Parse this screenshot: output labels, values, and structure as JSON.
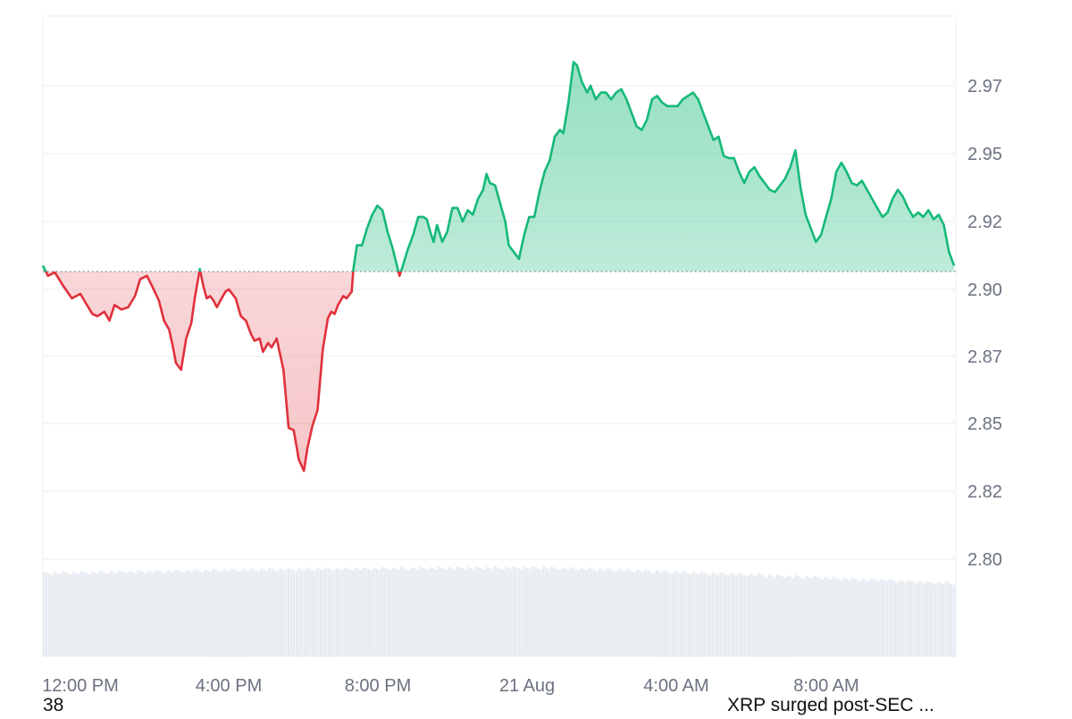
{
  "chart_data": {
    "type": "area",
    "baseline": 2.906,
    "ylim": [
      2.775,
      2.995
    ],
    "y_ticks": [
      "2.97",
      "2.95",
      "2.92",
      "2.90",
      "2.87",
      "2.85",
      "2.82",
      "2.80"
    ],
    "y_tick_values": [
      2.97,
      2.95,
      2.92,
      2.9,
      2.87,
      2.85,
      2.82,
      2.8
    ],
    "x_ticks": [
      {
        "label": "12:00 PM",
        "t": 0.0
      },
      {
        "label": "4:00 PM",
        "t": 4.0
      },
      {
        "label": "8:00 PM",
        "t": 8.0
      },
      {
        "label": "21 Aug",
        "t": 12.0
      },
      {
        "label": "4:00 AM",
        "t": 16.0
      },
      {
        "label": "8:00 AM",
        "t": 20.0
      }
    ],
    "x_range_hours": [
      -0.1,
      24.4
    ],
    "grid": true,
    "up_color": "#16b979",
    "down_color": "#e0313b",
    "volume_color": "#e6ecf1",
    "series": [
      {
        "values": [
          [
            -0.05,
            2.907
          ],
          [
            0.1,
            2.904
          ],
          [
            0.3,
            2.905
          ],
          [
            0.55,
            2.901
          ],
          [
            0.8,
            2.896
          ],
          [
            1.05,
            2.898
          ],
          [
            1.2,
            2.894
          ],
          [
            1.4,
            2.889
          ],
          [
            1.55,
            2.888
          ],
          [
            1.75,
            2.89
          ],
          [
            1.9,
            2.886
          ],
          [
            2.05,
            2.893
          ],
          [
            2.25,
            2.891
          ],
          [
            2.45,
            2.892
          ],
          [
            2.65,
            2.897
          ],
          [
            2.8,
            2.903
          ],
          [
            3.0,
            2.904
          ],
          [
            3.15,
            2.901
          ],
          [
            3.35,
            2.895
          ],
          [
            3.5,
            2.886
          ],
          [
            3.65,
            2.882
          ],
          [
            3.75,
            2.875
          ],
          [
            3.85,
            2.868
          ],
          [
            4.0,
            2.866
          ],
          [
            4.15,
            2.878
          ],
          [
            4.3,
            2.885
          ],
          [
            4.4,
            2.896
          ],
          [
            4.55,
            2.906
          ],
          [
            4.65,
            2.901
          ],
          [
            4.75,
            2.896
          ],
          [
            4.85,
            2.897
          ],
          [
            4.95,
            2.895
          ],
          [
            5.05,
            2.892
          ],
          [
            5.15,
            2.895
          ],
          [
            5.3,
            2.899
          ],
          [
            5.4,
            2.9
          ],
          [
            5.6,
            2.896
          ],
          [
            5.75,
            2.888
          ],
          [
            5.9,
            2.886
          ],
          [
            6.05,
            2.88
          ],
          [
            6.15,
            2.877
          ],
          [
            6.3,
            2.878
          ],
          [
            6.4,
            2.872
          ],
          [
            6.55,
            2.876
          ],
          [
            6.65,
            2.874
          ],
          [
            6.8,
            2.878
          ],
          [
            6.9,
            2.871
          ],
          [
            7.0,
            2.866
          ],
          [
            7.15,
            2.848
          ],
          [
            7.3,
            2.847
          ],
          [
            7.45,
            2.834
          ],
          [
            7.6,
            2.829
          ],
          [
            7.7,
            2.839
          ],
          [
            7.85,
            2.849
          ],
          [
            8.0,
            2.854
          ],
          [
            8.15,
            2.873
          ],
          [
            8.3,
            2.887
          ],
          [
            8.4,
            2.89
          ],
          [
            8.5,
            2.889
          ],
          [
            8.6,
            2.893
          ],
          [
            8.75,
            2.897
          ],
          [
            8.85,
            2.896
          ],
          [
            9.0,
            2.899
          ],
          [
            9.05,
            2.906
          ],
          [
            9.15,
            2.913
          ],
          [
            9.3,
            2.913
          ],
          [
            9.45,
            2.918
          ],
          [
            9.6,
            2.923
          ],
          [
            9.75,
            2.927
          ],
          [
            9.9,
            2.925
          ],
          [
            10.05,
            2.917
          ],
          [
            10.2,
            2.912
          ],
          [
            10.35,
            2.906
          ],
          [
            10.4,
            2.904
          ],
          [
            10.5,
            2.907
          ]
        ]
      },
      {
        "values": [
          [
            10.5,
            2.907
          ],
          [
            10.65,
            2.912
          ],
          [
            10.8,
            2.916
          ],
          [
            10.95,
            2.922
          ],
          [
            11.1,
            2.922
          ],
          [
            11.2,
            2.921
          ],
          [
            11.3,
            2.917
          ],
          [
            11.4,
            2.914
          ],
          [
            11.5,
            2.919
          ],
          [
            11.65,
            2.914
          ],
          [
            11.8,
            2.917
          ],
          [
            11.95,
            2.926
          ],
          [
            12.1,
            2.926
          ],
          [
            12.25,
            2.92
          ],
          [
            12.4,
            2.925
          ],
          [
            12.55,
            2.923
          ],
          [
            12.7,
            2.93
          ],
          [
            12.85,
            2.934
          ],
          [
            12.95,
            2.941
          ],
          [
            13.05,
            2.937
          ],
          [
            13.2,
            2.936
          ],
          [
            13.35,
            2.928
          ],
          [
            13.5,
            2.92
          ],
          [
            13.6,
            2.913
          ],
          [
            13.75,
            2.911
          ],
          [
            13.9,
            2.909
          ],
          [
            14.05,
            2.916
          ],
          [
            14.2,
            2.922
          ],
          [
            14.35,
            2.922
          ],
          [
            14.5,
            2.933
          ],
          [
            14.65,
            2.942
          ],
          [
            14.8,
            2.947
          ],
          [
            14.95,
            2.955
          ],
          [
            15.1,
            2.957
          ],
          [
            15.2,
            2.956
          ],
          [
            15.35,
            2.965
          ],
          [
            15.5,
            2.977
          ],
          [
            15.6,
            2.976
          ],
          [
            15.75,
            2.971
          ],
          [
            15.9,
            2.968
          ],
          [
            16.0,
            2.97
          ],
          [
            16.15,
            2.966
          ],
          [
            16.3,
            2.968
          ],
          [
            16.45,
            2.968
          ],
          [
            16.6,
            2.966
          ],
          [
            16.75,
            2.968
          ],
          [
            16.9,
            2.969
          ],
          [
            17.05,
            2.966
          ],
          [
            17.2,
            2.962
          ],
          [
            17.35,
            2.958
          ],
          [
            17.5,
            2.957
          ],
          [
            17.65,
            2.96
          ],
          [
            17.8,
            2.966
          ],
          [
            17.95,
            2.967
          ],
          [
            18.1,
            2.965
          ],
          [
            18.25,
            2.964
          ],
          [
            18.4,
            2.964
          ],
          [
            18.55,
            2.964
          ],
          [
            18.7,
            2.966
          ],
          [
            18.85,
            2.967
          ],
          [
            19.0,
            2.968
          ],
          [
            19.15,
            2.966
          ],
          [
            19.3,
            2.962
          ],
          [
            19.45,
            2.958
          ],
          [
            19.6,
            2.954
          ],
          [
            19.75,
            2.955
          ],
          [
            19.9,
            2.949
          ],
          [
            20.05,
            2.948
          ],
          [
            20.2,
            2.948
          ],
          [
            20.35,
            2.942
          ],
          [
            20.5,
            2.937
          ],
          [
            20.65,
            2.942
          ],
          [
            20.8,
            2.944
          ],
          [
            20.95,
            2.94
          ],
          [
            21.1,
            2.937
          ],
          [
            21.25,
            2.934
          ],
          [
            21.4,
            2.933
          ],
          [
            21.55,
            2.936
          ],
          [
            21.7,
            2.939
          ],
          [
            21.85,
            2.944
          ],
          [
            22.0,
            2.951
          ],
          [
            22.15,
            2.935
          ],
          [
            22.3,
            2.923
          ],
          [
            22.45,
            2.918
          ],
          [
            22.6,
            2.914
          ],
          [
            22.75,
            2.916
          ],
          [
            22.9,
            2.922
          ],
          [
            23.05,
            2.93
          ],
          [
            23.2,
            2.942
          ],
          [
            23.35,
            2.946
          ],
          [
            23.5,
            2.942
          ],
          [
            23.65,
            2.937
          ],
          [
            23.8,
            2.936
          ],
          [
            23.95,
            2.938
          ],
          [
            24.1,
            2.934
          ],
          [
            24.25,
            2.93
          ],
          [
            24.4,
            2.926
          ],
          [
            24.55,
            2.922
          ],
          [
            24.7,
            2.924
          ],
          [
            24.85,
            2.93
          ],
          [
            25.0,
            2.934
          ],
          [
            25.15,
            2.931
          ],
          [
            25.3,
            2.926
          ],
          [
            25.45,
            2.922
          ],
          [
            25.6,
            2.924
          ],
          [
            25.75,
            2.922
          ],
          [
            25.9,
            2.925
          ],
          [
            26.05,
            2.921
          ],
          [
            26.2,
            2.923
          ],
          [
            26.35,
            2.919
          ],
          [
            26.5,
            2.911
          ],
          [
            26.65,
            2.907
          ]
        ]
      }
    ]
  },
  "footer": {
    "left_text": "38",
    "right_text": "XRP surged post-SEC ..."
  }
}
